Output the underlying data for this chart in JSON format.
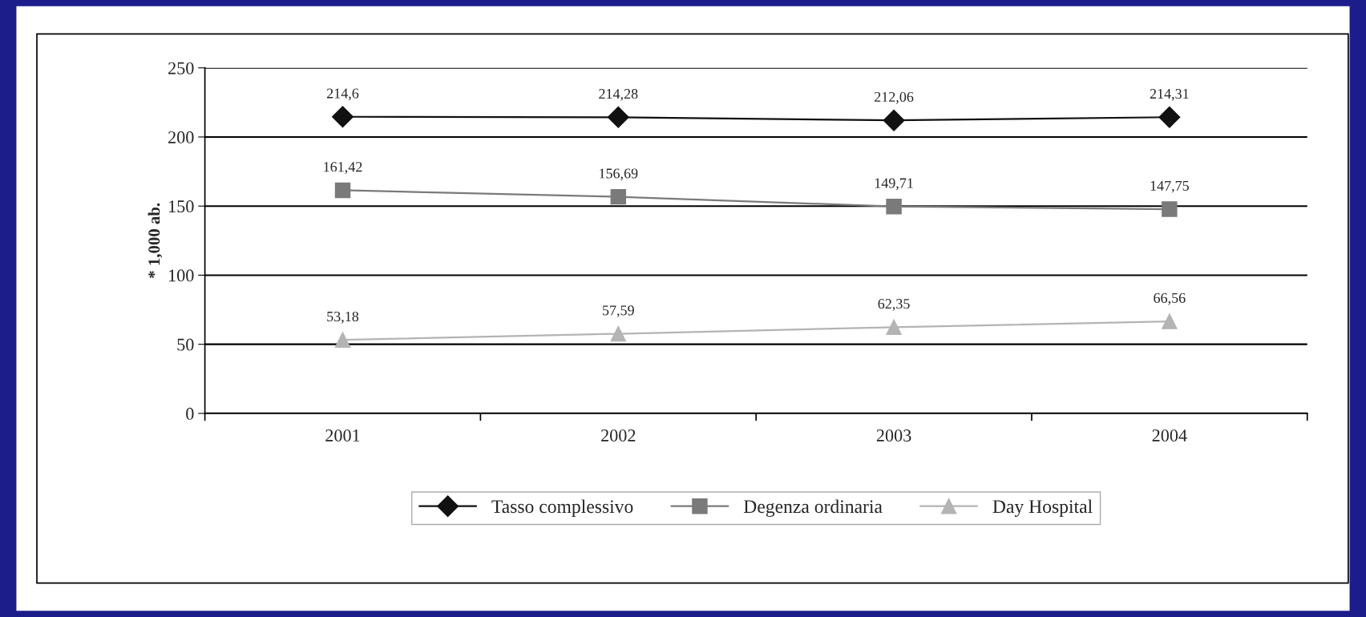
{
  "chart_data": {
    "type": "line",
    "ylabel": "* 1,000 ab.",
    "categories": [
      "2001",
      "2002",
      "2003",
      "2004"
    ],
    "series": [
      {
        "name": "Tasso complessivo",
        "color": "#111111",
        "marker": "diamond",
        "values": [
          214.6,
          214.28,
          212.06,
          214.31
        ],
        "value_labels": [
          "214,6",
          "214,28",
          "212,06",
          "214,31"
        ]
      },
      {
        "name": "Degenza ordinaria",
        "color": "#7a7a7a",
        "marker": "square",
        "values": [
          161.42,
          156.69,
          149.71,
          147.75
        ],
        "value_labels": [
          "161,42",
          "156,69",
          "149,71",
          "147,75"
        ]
      },
      {
        "name": "Day Hospital",
        "color": "#b4b4b4",
        "marker": "triangle",
        "values": [
          53.18,
          57.59,
          62.35,
          66.56
        ],
        "value_labels": [
          "53,18",
          "57,59",
          "62,35",
          "66,56"
        ]
      }
    ],
    "ylim": [
      0,
      250
    ],
    "yticks": [
      0,
      50,
      100,
      150,
      200,
      250
    ],
    "grid": "y",
    "legend": "bottom"
  }
}
